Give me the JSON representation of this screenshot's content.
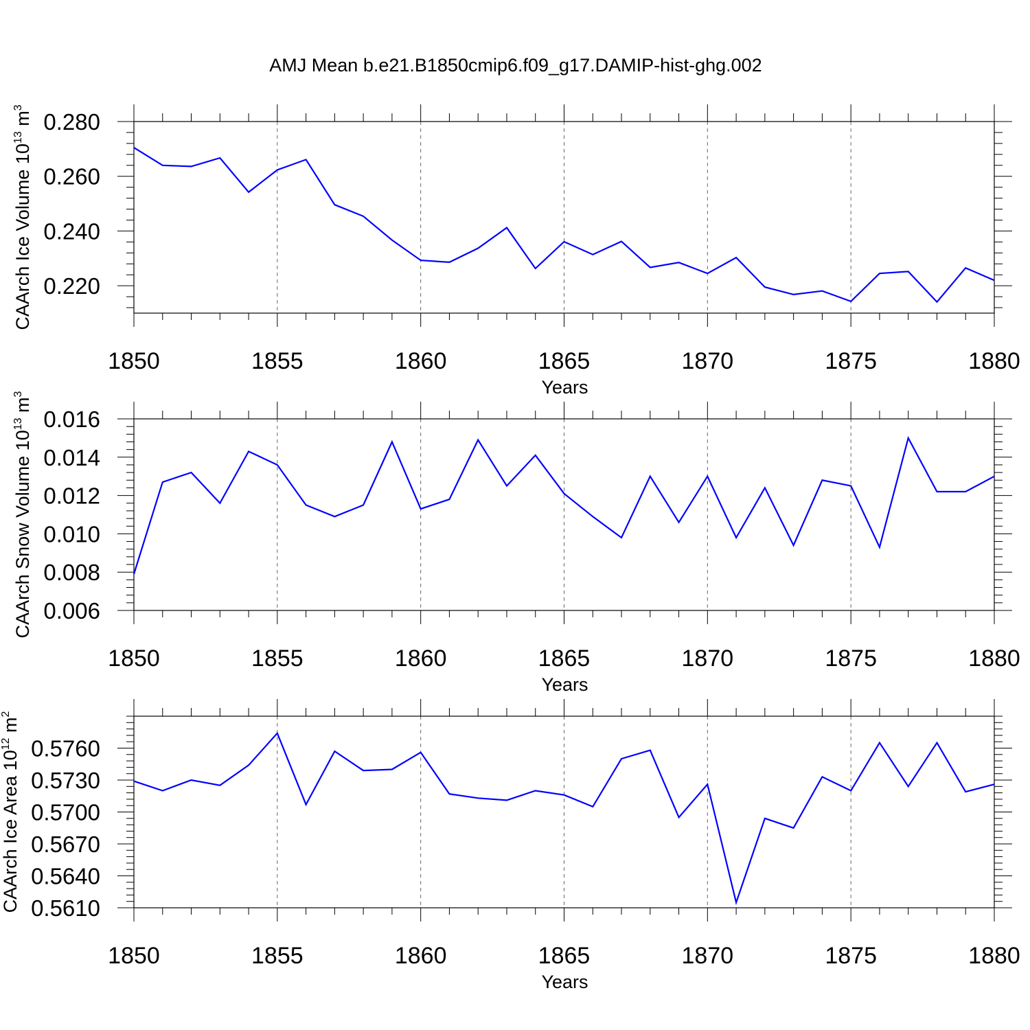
{
  "figure": {
    "title": "AMJ Mean b.e21.B1850cmip6.f09_g17.DAMIP-hist-ghg.002"
  },
  "chart_data": [
    {
      "type": "line",
      "name": "ice-volume",
      "ylabel_main": "CAArch Ice Volume 10",
      "ylabel_exp": "13",
      "ylabel_unit": " m",
      "ylabel_unit_exp": "3",
      "xlabel": "Years",
      "xlim": [
        1850,
        1880
      ],
      "ylim": [
        0.21,
        0.28
      ],
      "x_ticks": [
        1850,
        1855,
        1860,
        1865,
        1870,
        1875,
        1880
      ],
      "x_tick_labels": [
        "1850",
        "1855",
        "1860",
        "1865",
        "1870",
        "1875",
        "1880"
      ],
      "y_ticks": [
        0.22,
        0.24,
        0.26,
        0.28
      ],
      "y_tick_labels": [
        "0.220",
        "0.240",
        "0.260",
        "0.280"
      ],
      "y_minor_step": 0.004,
      "grid": "vertical dashed at major x ticks",
      "color": "#0000ff",
      "x": [
        1850,
        1851,
        1852,
        1853,
        1854,
        1855,
        1856,
        1857,
        1858,
        1859,
        1860,
        1861,
        1862,
        1863,
        1864,
        1865,
        1866,
        1867,
        1868,
        1869,
        1870,
        1871,
        1872,
        1873,
        1874,
        1875,
        1876,
        1877,
        1878,
        1879,
        1880
      ],
      "values": [
        0.2705,
        0.264,
        0.2636,
        0.2667,
        0.2542,
        0.2623,
        0.2661,
        0.2496,
        0.2454,
        0.2367,
        0.2293,
        0.2286,
        0.2337,
        0.2412,
        0.2263,
        0.2361,
        0.2314,
        0.2362,
        0.2267,
        0.2285,
        0.2245,
        0.2303,
        0.2195,
        0.2168,
        0.2181,
        0.2143,
        0.2245,
        0.2252,
        0.2141,
        0.2265,
        0.222
      ]
    },
    {
      "type": "line",
      "name": "snow-volume",
      "ylabel_main": "CAArch Snow Volume 10",
      "ylabel_exp": "13",
      "ylabel_unit": " m",
      "ylabel_unit_exp": "3",
      "xlabel": "Years",
      "xlim": [
        1850,
        1880
      ],
      "ylim": [
        0.006,
        0.016
      ],
      "x_ticks": [
        1850,
        1855,
        1860,
        1865,
        1870,
        1875,
        1880
      ],
      "x_tick_labels": [
        "1850",
        "1855",
        "1860",
        "1865",
        "1870",
        "1875",
        "1880"
      ],
      "y_ticks": [
        0.006,
        0.008,
        0.01,
        0.012,
        0.014,
        0.016
      ],
      "y_tick_labels": [
        "0.006",
        "0.008",
        "0.010",
        "0.012",
        "0.014",
        "0.016"
      ],
      "y_minor_step": 0.0004,
      "grid": "vertical dashed at major x ticks",
      "color": "#0000ff",
      "x": [
        1850,
        1851,
        1852,
        1853,
        1854,
        1855,
        1856,
        1857,
        1858,
        1859,
        1860,
        1861,
        1862,
        1863,
        1864,
        1865,
        1866,
        1867,
        1868,
        1869,
        1870,
        1871,
        1872,
        1873,
        1874,
        1875,
        1876,
        1877,
        1878,
        1879,
        1880
      ],
      "values": [
        0.0079,
        0.0127,
        0.0132,
        0.0116,
        0.0143,
        0.0136,
        0.0115,
        0.0109,
        0.0115,
        0.0148,
        0.0113,
        0.0118,
        0.0149,
        0.0125,
        0.0141,
        0.0121,
        0.0109,
        0.0098,
        0.013,
        0.0106,
        0.013,
        0.0098,
        0.0124,
        0.0094,
        0.0128,
        0.0125,
        0.0093,
        0.015,
        0.0122,
        0.0122,
        0.013
      ]
    },
    {
      "type": "line",
      "name": "ice-area",
      "ylabel_main": "CAArch Ice Area 10",
      "ylabel_exp": "12",
      "ylabel_unit": " m",
      "ylabel_unit_exp": "2",
      "xlabel": "Years",
      "xlim": [
        1850,
        1880
      ],
      "ylim": [
        0.561,
        0.579
      ],
      "x_ticks": [
        1850,
        1855,
        1860,
        1865,
        1870,
        1875,
        1880
      ],
      "x_tick_labels": [
        "1850",
        "1855",
        "1860",
        "1865",
        "1870",
        "1875",
        "1880"
      ],
      "y_ticks": [
        0.561,
        0.564,
        0.567,
        0.57,
        0.573,
        0.576
      ],
      "y_tick_labels": [
        "0.5610",
        "0.5640",
        "0.5670",
        "0.5700",
        "0.5730",
        "0.5760"
      ],
      "y_minor_step": 0.0006,
      "grid": "vertical dashed at major x ticks",
      "color": "#0000ff",
      "x": [
        1850,
        1851,
        1852,
        1853,
        1854,
        1855,
        1856,
        1857,
        1858,
        1859,
        1860,
        1861,
        1862,
        1863,
        1864,
        1865,
        1866,
        1867,
        1868,
        1869,
        1870,
        1871,
        1872,
        1873,
        1874,
        1875,
        1876,
        1877,
        1878,
        1879,
        1880
      ],
      "values": [
        0.5729,
        0.572,
        0.573,
        0.5725,
        0.5744,
        0.5774,
        0.5707,
        0.5757,
        0.5739,
        0.574,
        0.5756,
        0.5717,
        0.5713,
        0.5711,
        0.572,
        0.5716,
        0.5705,
        0.575,
        0.5758,
        0.5695,
        0.5726,
        0.5615,
        0.5694,
        0.5685,
        0.5733,
        0.572,
        0.5765,
        0.5724,
        0.5765,
        0.5719,
        0.5726
      ]
    }
  ]
}
